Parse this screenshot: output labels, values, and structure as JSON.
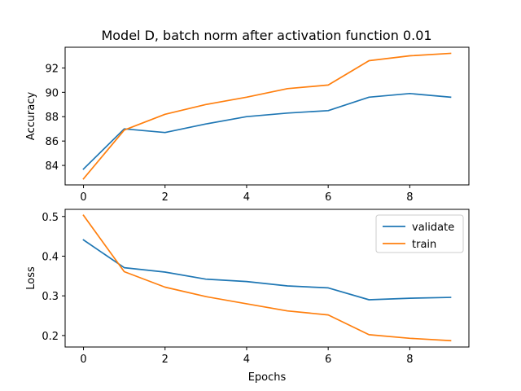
{
  "title": "Model D, batch norm after activation function 0.01",
  "colors": {
    "validate": "#1f77b4",
    "train": "#ff7f0e",
    "axes": "#000000",
    "background": "#ffffff"
  },
  "chart_data": [
    {
      "type": "line",
      "title": "Model D, batch norm after activation function 0.01",
      "xlabel": "",
      "ylabel": "Accuracy",
      "x": [
        0,
        1,
        2,
        3,
        4,
        5,
        6,
        7,
        8,
        9
      ],
      "xlim": [
        -0.45,
        9.45
      ],
      "ylim": [
        82.4,
        93.7
      ],
      "xticks": [
        0,
        2,
        4,
        6,
        8
      ],
      "yticks": [
        84,
        86,
        88,
        90,
        92
      ],
      "grid": false,
      "legend": null,
      "series": [
        {
          "name": "validate",
          "color": "#1f77b4",
          "values": [
            83.7,
            87.0,
            86.7,
            87.4,
            88.0,
            88.3,
            88.5,
            89.6,
            89.9,
            89.6
          ]
        },
        {
          "name": "train",
          "color": "#ff7f0e",
          "values": [
            82.9,
            86.9,
            88.2,
            89.0,
            89.6,
            90.3,
            90.6,
            92.6,
            93.0,
            93.2
          ]
        }
      ]
    },
    {
      "type": "line",
      "title": "",
      "xlabel": "Epochs",
      "ylabel": "Loss",
      "x": [
        0,
        1,
        2,
        3,
        4,
        5,
        6,
        7,
        8,
        9
      ],
      "xlim": [
        -0.45,
        9.45
      ],
      "ylim": [
        0.171,
        0.518
      ],
      "xticks": [
        0,
        2,
        4,
        6,
        8
      ],
      "yticks": [
        0.2,
        0.3,
        0.4,
        0.5
      ],
      "grid": false,
      "legend": "top-right",
      "series": [
        {
          "name": "validate",
          "color": "#1f77b4",
          "values": [
            0.441,
            0.371,
            0.36,
            0.342,
            0.336,
            0.325,
            0.32,
            0.29,
            0.294,
            0.296
          ]
        },
        {
          "name": "train",
          "color": "#ff7f0e",
          "values": [
            0.503,
            0.361,
            0.322,
            0.298,
            0.28,
            0.262,
            0.252,
            0.202,
            0.193,
            0.187
          ]
        }
      ]
    }
  ]
}
